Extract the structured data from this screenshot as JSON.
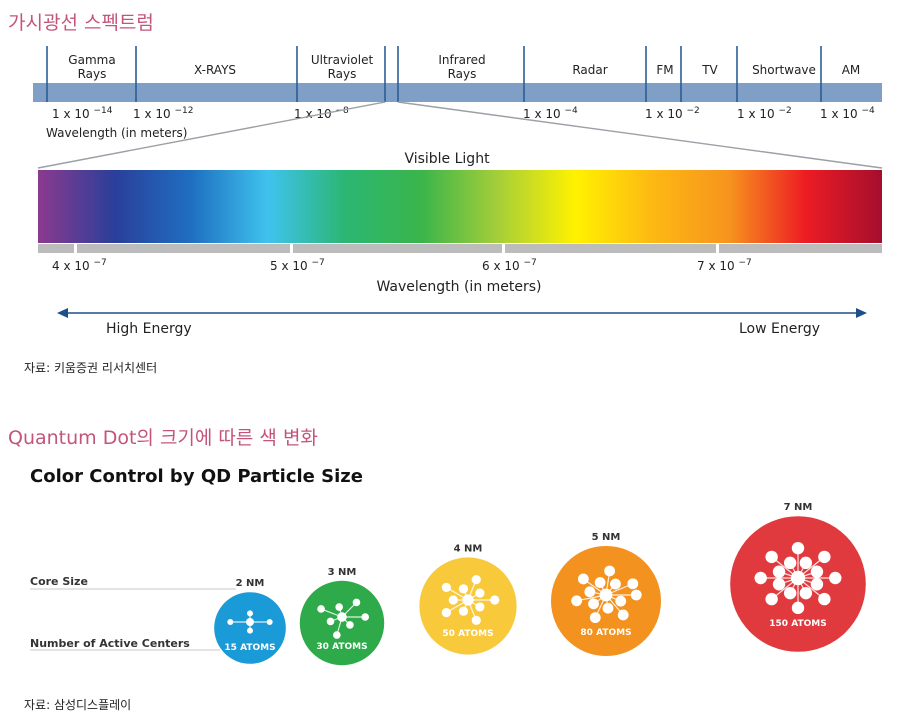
{
  "section1_title": "가시광선 스펙트럼",
  "section2_title": "Quantum Dot의 크기에 따른 색 변화",
  "source1": "자료: 키움증권 리서치센터",
  "source2": "자료: 삼성디스플레이",
  "chart_data": [
    {
      "type": "diagram",
      "bands": [
        {
          "line1": "Gamma",
          "line2": "Rays"
        },
        {
          "line1": "X-RAYS",
          "line2": ""
        },
        {
          "line1": "Ultraviolet",
          "line2": "Rays"
        },
        {
          "line1": "Infrared",
          "line2": "Rays"
        },
        {
          "line1": "Radar",
          "line2": ""
        },
        {
          "line1": "FM",
          "line2": ""
        },
        {
          "line1": "TV",
          "line2": ""
        },
        {
          "line1": "Shortwave",
          "line2": ""
        },
        {
          "line1": "AM",
          "line2": ""
        }
      ],
      "scale_labels": [
        {
          "base": "1 x 10",
          "exp": "−14"
        },
        {
          "base": "1 x 10",
          "exp": "−12"
        },
        {
          "base": "1 x 10",
          "exp": "−8"
        },
        {
          "base": "1 x 10",
          "exp": "−4"
        },
        {
          "base": "1 x 10",
          "exp": "−2"
        },
        {
          "base": "1 x 10",
          "exp": "−2"
        },
        {
          "base": "1 x 10",
          "exp": "−4"
        }
      ],
      "scale_caption": "Wavelength (in meters)",
      "visible_title": "Visible Light",
      "visible_ticks": [
        {
          "base": "4 x 10",
          "exp": "−7"
        },
        {
          "base": "5 x 10",
          "exp": "−7"
        },
        {
          "base": "6 x 10",
          "exp": "−7"
        },
        {
          "base": "7 x 10",
          "exp": "−7"
        }
      ],
      "visible_caption": "Wavelength (in meters)",
      "energy_high": "High Energy",
      "energy_low": "Low Energy",
      "gradient_colors": [
        "#8b3a8f",
        "#2a3f9a",
        "#1f6fc0",
        "#3fc3ee",
        "#2bb673",
        "#3ab54a",
        "#a6ce39",
        "#fff200",
        "#fdb913",
        "#f7941d",
        "#ed1c24",
        "#a50e2d"
      ]
    },
    {
      "type": "bubble",
      "title": "Color Control by QD Particle Size",
      "row_labels": [
        "Core Size",
        "Number of Active Centers"
      ],
      "dots": [
        {
          "size_nm": 2,
          "size_label": "2 NM",
          "atoms": 15,
          "atoms_label": "15 ATOMS",
          "color": "#1a9ad6"
        },
        {
          "size_nm": 3,
          "size_label": "3 NM",
          "atoms": 30,
          "atoms_label": "30 ATOMS",
          "color": "#2eaa4a"
        },
        {
          "size_nm": 4,
          "size_label": "4 NM",
          "atoms": 50,
          "atoms_label": "50 ATOMS",
          "color": "#f9c93c"
        },
        {
          "size_nm": 5,
          "size_label": "5 NM",
          "atoms": 80,
          "atoms_label": "80 ATOMS",
          "color": "#f3921f"
        },
        {
          "size_nm": 7,
          "size_label": "7 NM",
          "atoms": 150,
          "atoms_label": "150 ATOMS",
          "color": "#e03a3e"
        }
      ]
    }
  ]
}
